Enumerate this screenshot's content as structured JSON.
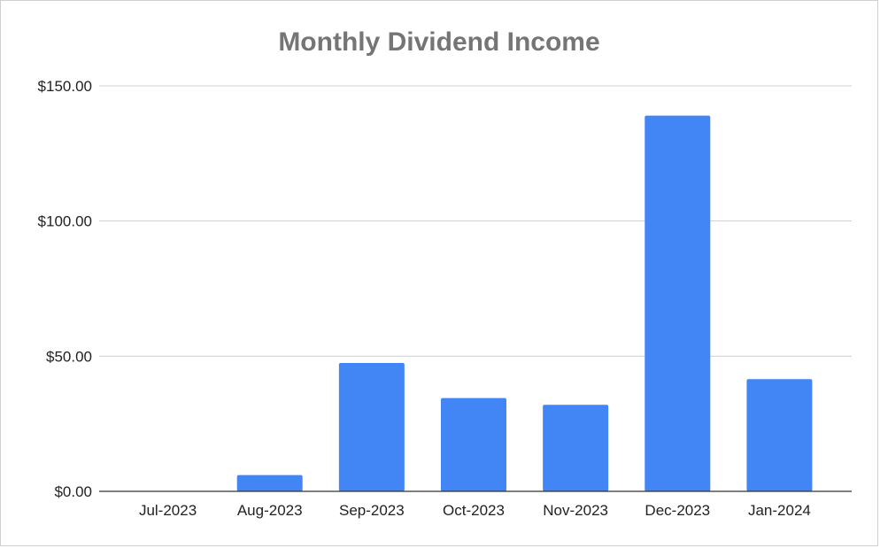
{
  "chart_data": {
    "type": "bar",
    "title": "Monthly Dividend Income",
    "xlabel": "",
    "ylabel": "",
    "categories": [
      "Jul-2023",
      "Aug-2023",
      "Sep-2023",
      "Oct-2023",
      "Nov-2023",
      "Dec-2023",
      "Jan-2024"
    ],
    "series": [
      {
        "values": [
          0,
          6,
          47.5,
          34.5,
          32,
          139,
          41.5
        ]
      }
    ],
    "ylim": [
      0,
      150
    ],
    "yticks": [
      0,
      50,
      100,
      150
    ],
    "ytick_labels": [
      "$0.00",
      "$50.00",
      "$100.00",
      "$150.00"
    ],
    "bar_color": "#4285f4",
    "grid": true,
    "legend": "none"
  }
}
